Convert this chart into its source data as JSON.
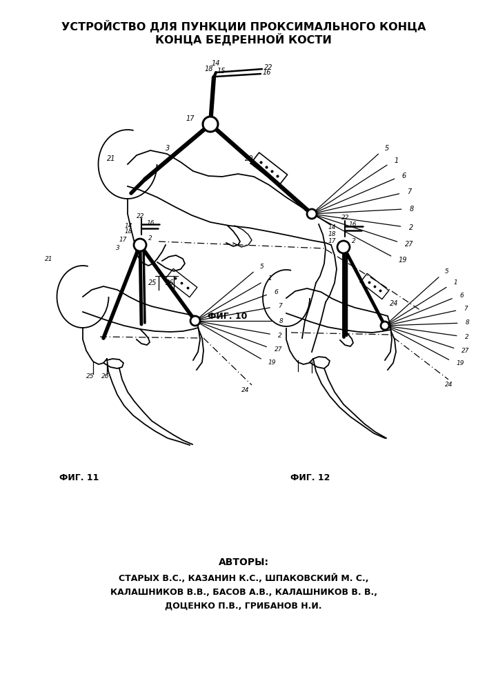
{
  "title_line1": "УСТРОЙСТВО ДЛЯ ПУНКЦИИ ПРОКСИМАЛЬНОГО КОНЦА",
  "title_line2": "КОНЦА БЕДРЕННОЙ КОСТИ",
  "fig10_label": "ФИГ. 10",
  "fig11_label": "ФИГ. 11",
  "fig12_label": "ФИГ. 12",
  "authors_header": "АВТОРЫ:",
  "authors_line1": "СТАРЫХ В.С., КАЗАНИН К.С., ШПАКОВСКИЙ М. С.,",
  "authors_line2": "КАЛАШНИКОВ В.В., БАСОВ А.В., КАЛАШНИКОВ В. В.,",
  "authors_line3": "ДОЦЕНКО П.В., ГРИБАНОВ Н.И.",
  "bg_color": "#ffffff",
  "line_color": "#000000"
}
